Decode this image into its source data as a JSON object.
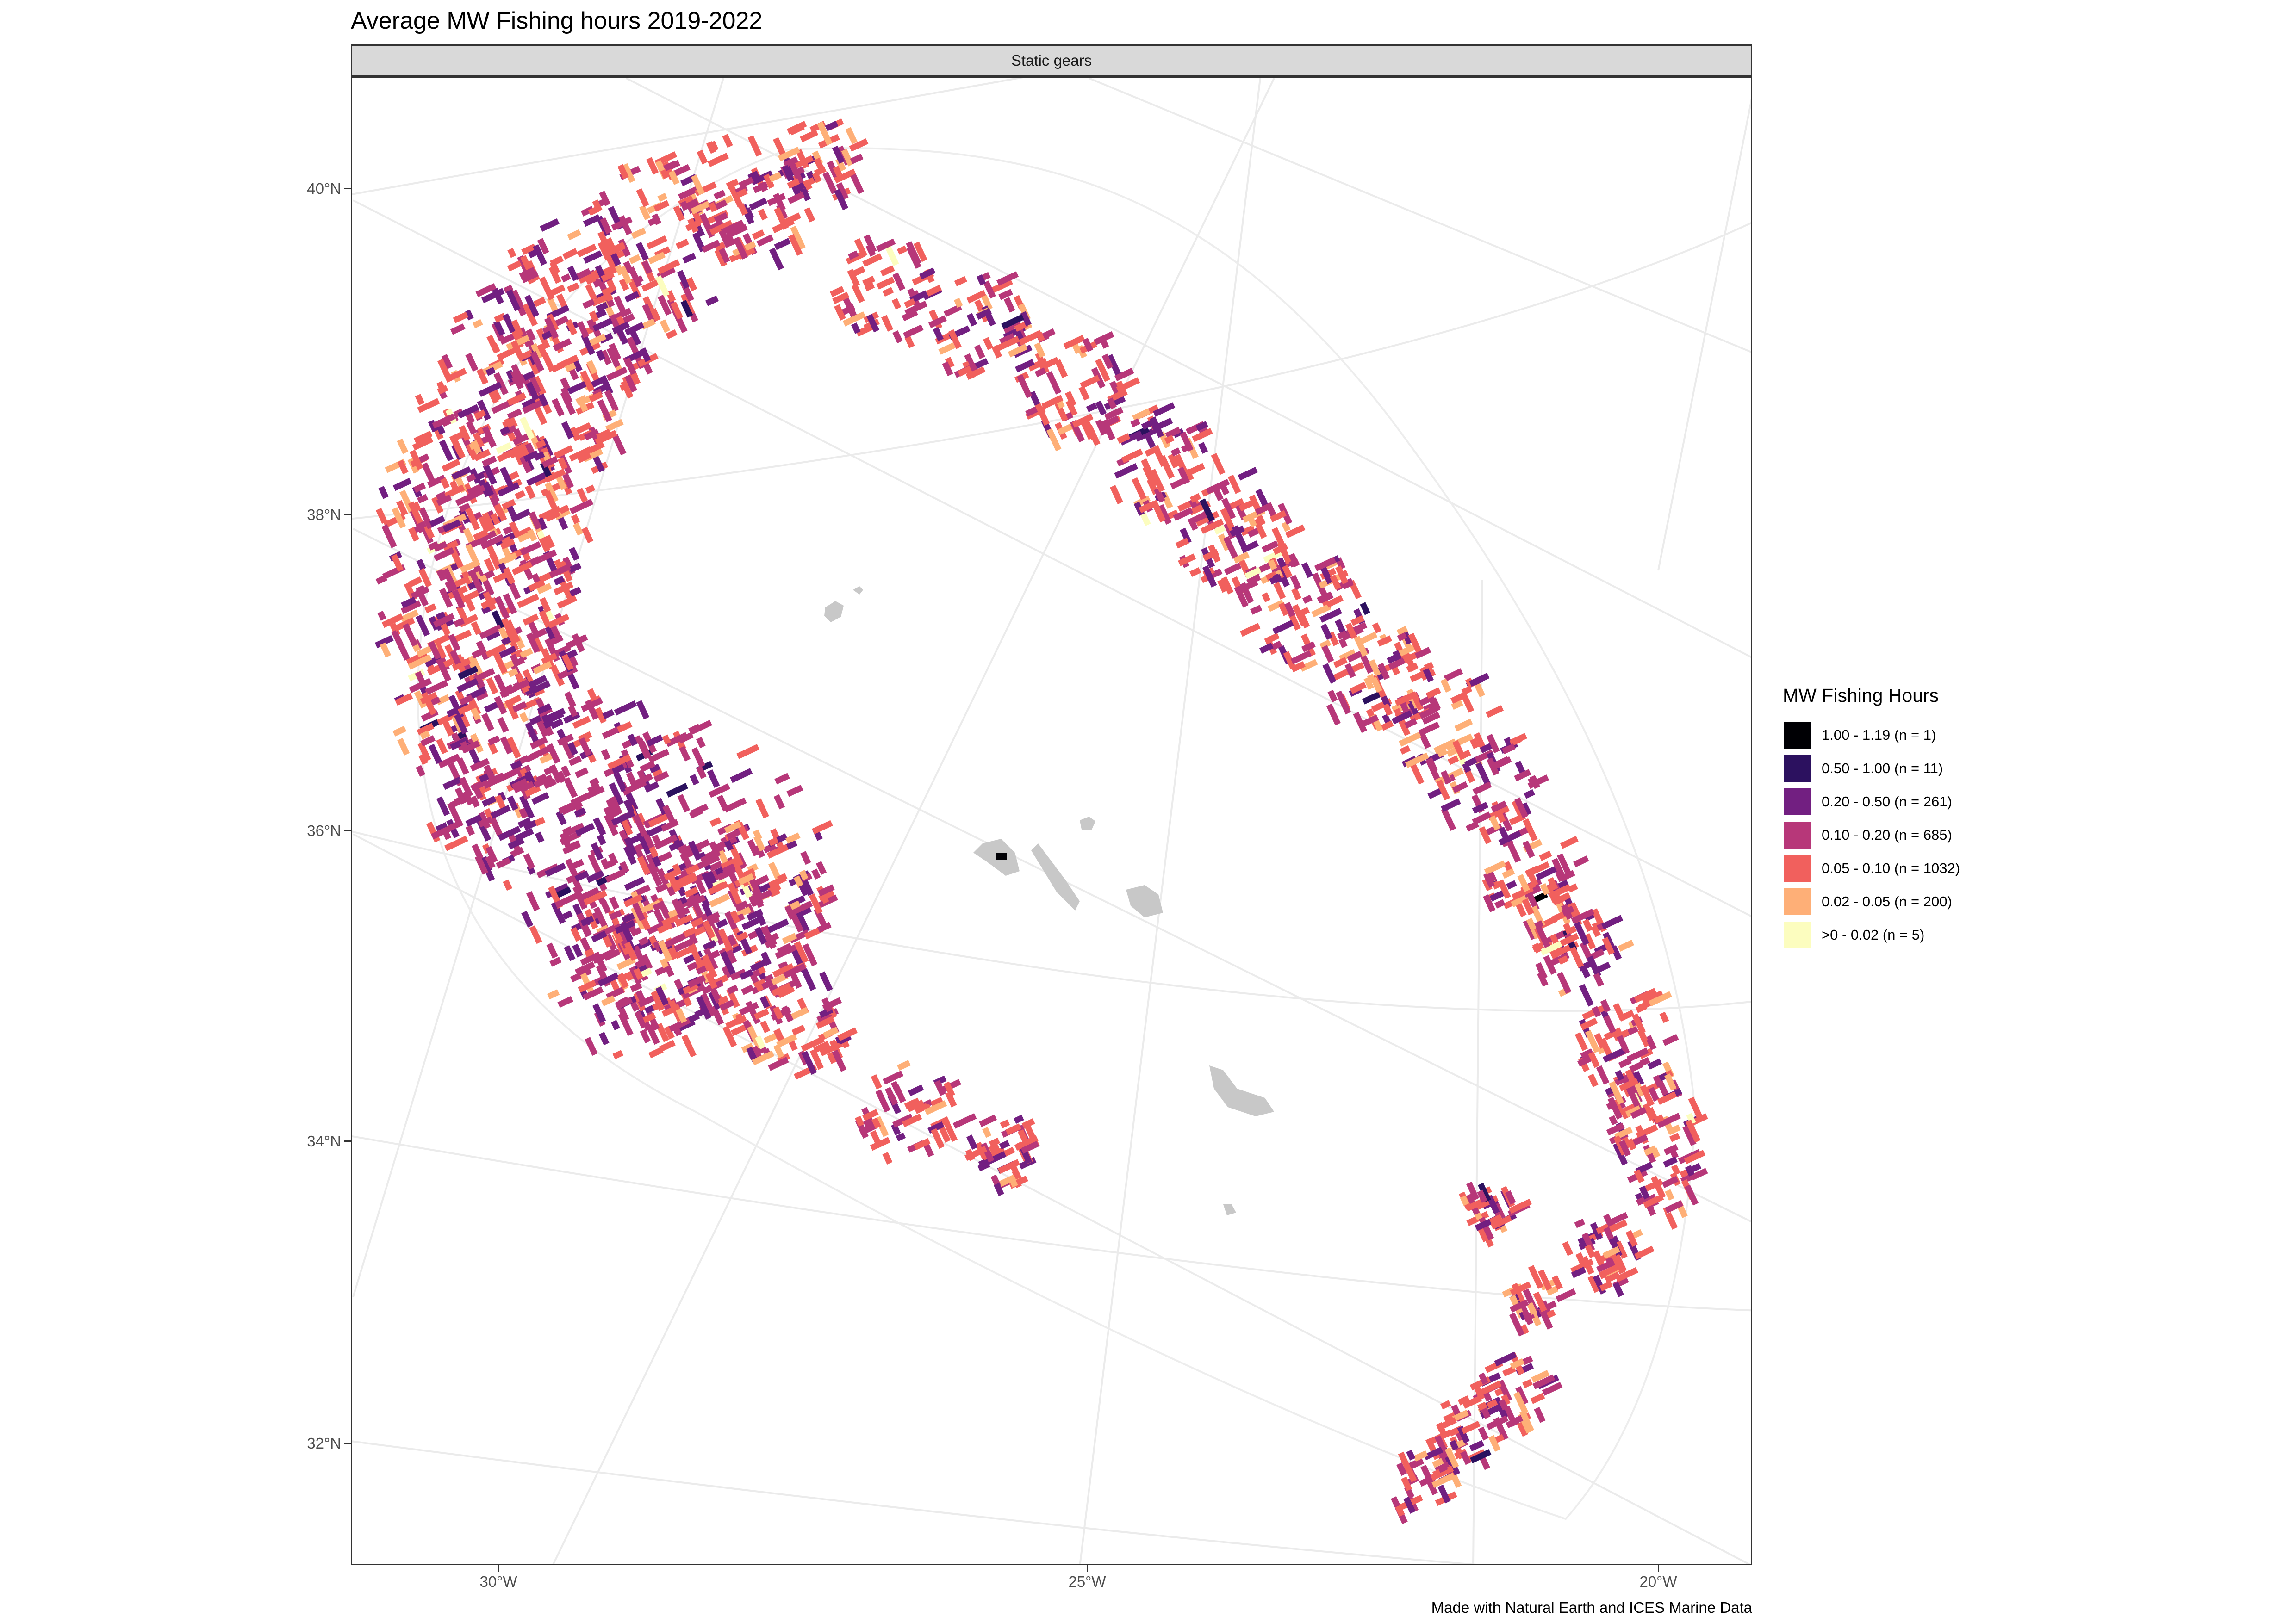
{
  "title": "Average MW Fishing hours 2019-2022",
  "facet_label": "Static gears",
  "caption": "Made with Natural Earth and ICES Marine Data",
  "y_axis_labels": [
    "40°N",
    "38°N",
    "36°N",
    "34°N",
    "32°N"
  ],
  "x_axis_labels": [
    "30°W",
    "25°W",
    "20°W"
  ],
  "legend": {
    "title": "MW Fishing Hours",
    "items": [
      {
        "label": "1.00 - 1.19 (n = 1)",
        "color": "#000004"
      },
      {
        "label": "0.50 - 1.00 (n = 11)",
        "color": "#2c115f"
      },
      {
        "label": "0.20 - 0.50 (n = 261)",
        "color": "#721f81"
      },
      {
        "label": "0.10 - 0.20 (n = 685)",
        "color": "#b73779"
      },
      {
        "label": "0.05 - 0.10 (n = 1032)",
        "color": "#f1605d"
      },
      {
        "label": "0.02 - 0.05 (n = 200)",
        "color": "#feaf77"
      },
      {
        "label": ">0 - 0.02 (n = 5)",
        "color": "#fcfdbf"
      }
    ]
  },
  "colors": {
    "land": "#c8c8c8",
    "graticule": "#ebebeb",
    "panel_border": "#333333",
    "strip_fill": "#d9d9d9"
  }
}
